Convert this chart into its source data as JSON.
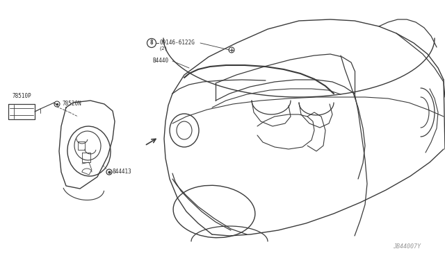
{
  "background_color": "#ffffff",
  "line_color": "#3a3a3a",
  "text_color": "#2a2a2a",
  "fig_width": 6.4,
  "fig_height": 3.72,
  "dpi": 100,
  "labels": {
    "part1": "09146-6122G",
    "part1_sub": "(2)",
    "part1_circle": "8",
    "part2": "B4440",
    "part3": "78510P",
    "part4": "78520N",
    "part5": "844413",
    "watermark": "JB44007Y"
  }
}
